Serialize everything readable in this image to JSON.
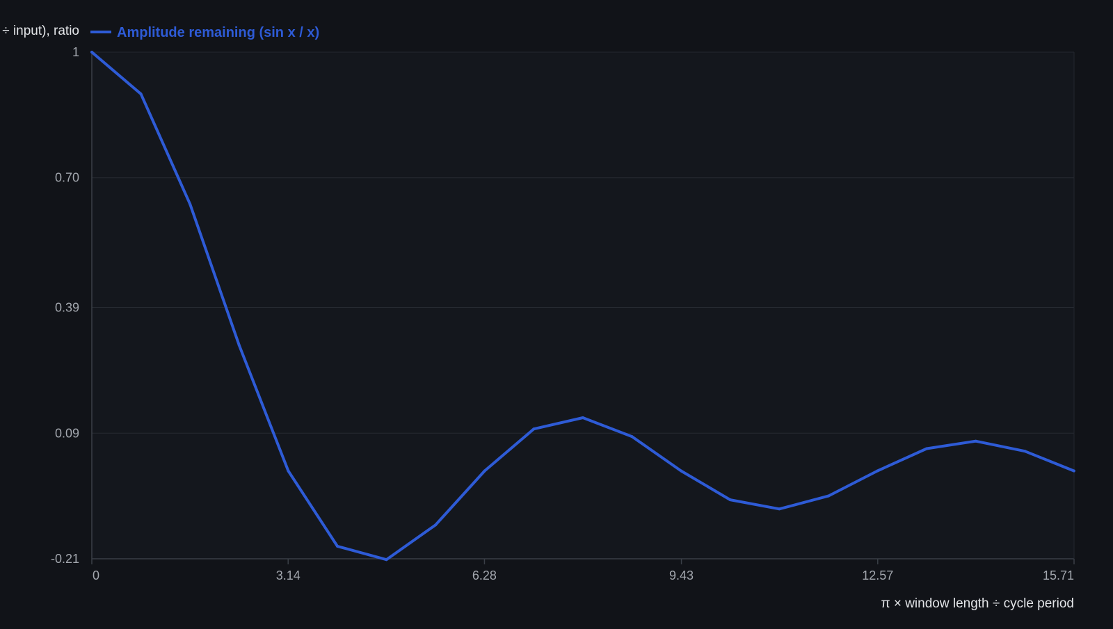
{
  "chart_data": {
    "type": "line",
    "ylabel": "÷ input), ratio",
    "xlabel": "π × window length ÷ cycle period",
    "x_ticks": [
      "0",
      "3.14",
      "6.28",
      "9.43",
      "12.57",
      "15.71"
    ],
    "y_ticks": [
      "1",
      "0.70",
      "0.39",
      "0.09",
      "-0.21"
    ],
    "xlim": [
      0,
      15.71
    ],
    "ylim": [
      -0.21,
      1
    ],
    "grid": true,
    "legend_position": "top-left",
    "series": [
      {
        "name": "Amplitude remaining (sin x / x)",
        "color": "#2e5bd6",
        "x": [
          0,
          0.785,
          1.571,
          2.356,
          3.142,
          3.927,
          4.712,
          5.498,
          6.283,
          7.069,
          7.854,
          8.639,
          9.425,
          10.21,
          10.996,
          11.781,
          12.566,
          13.352,
          14.137,
          14.923,
          15.708
        ],
        "y": [
          1.0,
          0.9,
          0.637,
          0.3,
          0.0,
          -0.18,
          -0.212,
          -0.129,
          0.0,
          0.1,
          0.127,
          0.082,
          0.0,
          -0.069,
          -0.091,
          -0.06,
          0.0,
          0.053,
          0.071,
          0.047,
          0.0
        ]
      }
    ]
  },
  "colors": {
    "background": "#111318",
    "plot_background": "#14171d",
    "grid": "#262a31",
    "axis": "#3a3f47",
    "tick_text": "#a3a7ae",
    "title_text": "#e3e5e8"
  }
}
